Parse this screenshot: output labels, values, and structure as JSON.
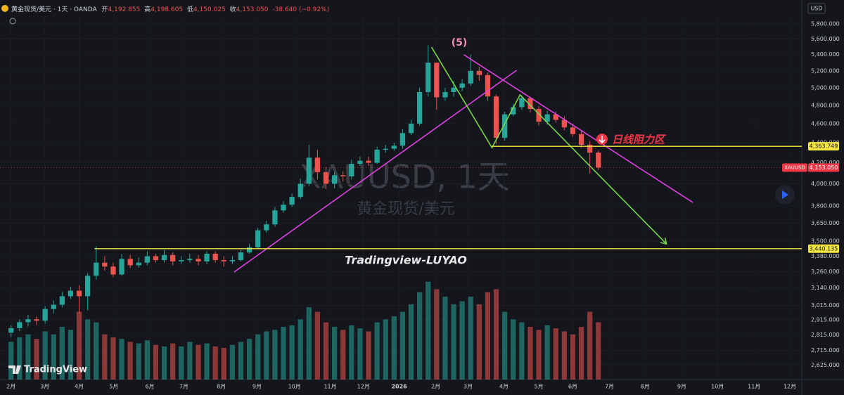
{
  "header": {
    "symbol": "黄金现货/美元 · 1天 · OANDA",
    "ohlc": [
      [
        "开",
        "4,192.855"
      ],
      [
        "高",
        "4,198.605"
      ],
      [
        "低",
        "4,150.025"
      ],
      [
        "收",
        "4,153.050"
      ]
    ],
    "change": "-38.640 (−0.92%)"
  },
  "chart_data": {
    "type": "candlestick",
    "currency": "USD",
    "watermark": "XAUUSD, 1天",
    "watermark_sub": "黄金现货/美元",
    "annotations": [
      "(5)",
      "日线阻力区",
      "Tradingview-LUYAO"
    ],
    "brand": "TradingView",
    "log_scale": true,
    "grid": true,
    "up_color": "#26a69a",
    "down_color": "#ef5350",
    "ylim": [
      2538,
      5934
    ],
    "yticks": [
      {
        "value": 5800,
        "label": "5,800.000"
      },
      {
        "value": 5600,
        "label": "5,600.000"
      },
      {
        "value": 5400,
        "label": "5,400.000"
      },
      {
        "value": 5200,
        "label": "5,200.000"
      },
      {
        "value": 5000,
        "label": "5,000.000"
      },
      {
        "value": 4800,
        "label": "4,800.000"
      },
      {
        "value": 4600,
        "label": "4,600.000"
      },
      {
        "value": 4400,
        "label": "4,400.000"
      },
      {
        "value": 4200,
        "label": "4,200.000"
      },
      {
        "value": 4000,
        "label": "4,000.000"
      },
      {
        "value": 3800,
        "label": "3,800.000"
      },
      {
        "value": 3650,
        "label": "3,650.000"
      },
      {
        "value": 3500,
        "label": "3,500.000"
      },
      {
        "value": 3380,
        "label": "3,380.000"
      },
      {
        "value": 3260,
        "label": "3,260.000"
      },
      {
        "value": 3140,
        "label": "3,140.000"
      },
      {
        "value": 3015,
        "label": "3,015.000"
      },
      {
        "value": 2915,
        "label": "2,915.000"
      },
      {
        "value": 2815,
        "label": "2,815.000"
      },
      {
        "value": 2715,
        "label": "2,715.000"
      },
      {
        "value": 2625,
        "label": "2,625.000"
      }
    ],
    "xlim": [
      -1.3,
      92.9
    ],
    "xticks": [
      {
        "value": 0,
        "label": "2月"
      },
      {
        "value": 3.97,
        "label": "3月"
      },
      {
        "value": 8.0,
        "label": "4月"
      },
      {
        "value": 12.07,
        "label": "5月"
      },
      {
        "value": 16.3,
        "label": "6月"
      },
      {
        "value": 20.3,
        "label": "7月"
      },
      {
        "value": 24.7,
        "label": "8月"
      },
      {
        "value": 28.9,
        "label": "9月"
      },
      {
        "value": 33.3,
        "label": "10月"
      },
      {
        "value": 37.5,
        "label": "11月"
      },
      {
        "value": 41.4,
        "label": "12月"
      },
      {
        "value": 45.6,
        "label": "2026"
      },
      {
        "value": 49.9,
        "label": "2月"
      },
      {
        "value": 53.7,
        "label": "3月"
      },
      {
        "value": 57.9,
        "label": "4月"
      },
      {
        "value": 62.0,
        "label": "5月"
      },
      {
        "value": 66.0,
        "label": "6月"
      },
      {
        "value": 70.3,
        "label": "7月"
      },
      {
        "value": 74.5,
        "label": "8月"
      },
      {
        "value": 78.8,
        "label": "9月"
      },
      {
        "value": 83.0,
        "label": "10月"
      },
      {
        "value": 87.3,
        "label": "11月"
      },
      {
        "value": 91.5,
        "label": "12月"
      }
    ],
    "x": [
      0,
      1,
      2,
      3,
      4,
      5,
      6,
      7,
      8,
      9,
      10,
      11,
      12,
      13,
      14,
      15,
      16,
      17,
      18,
      19,
      20,
      21,
      22,
      23,
      24,
      25,
      26,
      27,
      28,
      29,
      30,
      31,
      32,
      33,
      34,
      35,
      36,
      37,
      38,
      39,
      40,
      41,
      42,
      43,
      44,
      45,
      46,
      47,
      48,
      49,
      50,
      51,
      52,
      53,
      54,
      55,
      56,
      57,
      58,
      59,
      60,
      61,
      62,
      63,
      64,
      65,
      66,
      67,
      68,
      69
    ],
    "open": [
      2830,
      2860,
      2900,
      2920,
      2910,
      2990,
      3020,
      3080,
      3120,
      3080,
      3230,
      3330,
      3300,
      3240,
      3360,
      3310,
      3330,
      3380,
      3350,
      3390,
      3340,
      3350,
      3360,
      3340,
      3400,
      3350,
      3340,
      3350,
      3410,
      3450,
      3590,
      3640,
      3760,
      3810,
      3880,
      4000,
      4250,
      4110,
      4000,
      4080,
      4070,
      4190,
      4220,
      4200,
      4330,
      4340,
      4370,
      4500,
      4600,
      4950,
      5300,
      4890,
      4950,
      5000,
      5050,
      5200,
      5150,
      4900,
      4450,
      4700,
      4780,
      4880,
      4760,
      4620,
      4700,
      4640,
      4560,
      4490,
      4380,
      4300
    ],
    "high": [
      2880,
      2920,
      2950,
      2940,
      3010,
      3050,
      3110,
      3150,
      3160,
      3250,
      3460,
      3380,
      3330,
      3400,
      3390,
      3370,
      3420,
      3400,
      3430,
      3410,
      3380,
      3400,
      3390,
      3420,
      3420,
      3380,
      3380,
      3430,
      3480,
      3610,
      3670,
      3790,
      3840,
      3910,
      4050,
      4380,
      4330,
      4160,
      4110,
      4120,
      4230,
      4260,
      4260,
      4360,
      4380,
      4400,
      4540,
      4640,
      5000,
      5520,
      5300,
      5000,
      5080,
      5100,
      5400,
      5250,
      5180,
      4920,
      4730,
      4820,
      4910,
      4900,
      4790,
      4740,
      4730,
      4680,
      4600,
      4520,
      4420,
      4320
    ],
    "low": [
      2800,
      2840,
      2870,
      2880,
      2890,
      2960,
      3000,
      3060,
      2960,
      2980,
      3200,
      3270,
      3220,
      3230,
      3290,
      3290,
      3310,
      3330,
      3330,
      3310,
      3320,
      3330,
      3310,
      3320,
      3330,
      3300,
      3320,
      3340,
      3400,
      3440,
      3570,
      3620,
      3740,
      3790,
      3860,
      3980,
      4040,
      3950,
      3960,
      4020,
      4040,
      4170,
      4170,
      4190,
      4300,
      4320,
      4340,
      4480,
      4580,
      4900,
      4750,
      4850,
      4900,
      4960,
      5020,
      5080,
      4850,
      4390,
      4420,
      4680,
      4750,
      4720,
      4580,
      4590,
      4610,
      4530,
      4460,
      4350,
      4100,
      4130
    ],
    "close": [
      2860,
      2900,
      2920,
      2910,
      2990,
      3020,
      3080,
      3120,
      3080,
      3230,
      3330,
      3300,
      3240,
      3360,
      3310,
      3330,
      3380,
      3350,
      3390,
      3340,
      3350,
      3360,
      3340,
      3400,
      3350,
      3340,
      3350,
      3410,
      3450,
      3590,
      3640,
      3760,
      3810,
      3880,
      4000,
      4250,
      4110,
      4000,
      4080,
      4070,
      4190,
      4220,
      4200,
      4330,
      4340,
      4370,
      4500,
      4600,
      4950,
      5300,
      4890,
      4950,
      5000,
      5050,
      5200,
      5150,
      4900,
      4450,
      4700,
      4780,
      4880,
      4760,
      4620,
      4700,
      4640,
      4560,
      4490,
      4380,
      4300,
      4153
    ],
    "volume_ylim": [
      0,
      70
    ],
    "volume": [
      25,
      28,
      30,
      27,
      32,
      30,
      35,
      33,
      45,
      40,
      38,
      30,
      28,
      27,
      25,
      24,
      26,
      23,
      22,
      24,
      22,
      25,
      23,
      24,
      22,
      21,
      23,
      25,
      27,
      30,
      32,
      33,
      35,
      36,
      40,
      48,
      45,
      38,
      35,
      33,
      36,
      34,
      32,
      38,
      40,
      42,
      45,
      50,
      58,
      65,
      60,
      55,
      50,
      52,
      55,
      50,
      58,
      60,
      45,
      40,
      38,
      35,
      33,
      36,
      34,
      32,
      30,
      35,
      45,
      38
    ],
    "levels": [
      {
        "value": 4363.749,
        "label": "4,363.749",
        "start": 56.5,
        "color": "#f5e642"
      },
      {
        "value": 3440.135,
        "label": "3,440.135",
        "start": 9.8,
        "color": "#f5e642"
      }
    ],
    "last": {
      "symbol": "XAUUSD",
      "value": 4153.05,
      "label": "4,153.050",
      "color": "#f23645"
    },
    "drawings": [
      {
        "color": "#e040e0",
        "x": [
          26.2,
          59.4
        ],
        "y": [
          3258,
          5207
        ]
      },
      {
        "color": "#e040e0",
        "x": [
          53.2,
          80.1
        ],
        "y": [
          5398,
          3830
        ]
      },
      {
        "color": "#76d64a",
        "x": [
          49.4,
          56.5,
          59.8,
          77.0
        ],
        "y": [
          5495,
          4350,
          4918,
          3478
        ]
      }
    ]
  }
}
